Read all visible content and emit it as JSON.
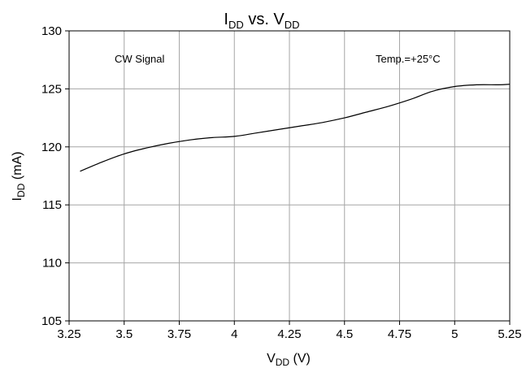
{
  "chart_data": {
    "type": "line",
    "title": {
      "main": "I",
      "sub": "DD",
      "mid": " vs. V",
      "sub2": "DD"
    },
    "xlabel": {
      "main": "V",
      "sub": "DD",
      "rest": " (V)"
    },
    "ylabel": {
      "main": "I",
      "sub": "DD",
      "rest": " (mA)"
    },
    "xlim": [
      3.25,
      5.25
    ],
    "ylim": [
      105,
      130
    ],
    "x_ticks": [
      "3.25",
      "3.5",
      "3.75",
      "4",
      "4.25",
      "4.5",
      "4.75",
      "5",
      "5.25"
    ],
    "y_ticks": [
      "130",
      "125",
      "120",
      "115",
      "110",
      "105"
    ],
    "grid": true,
    "annotations": [
      "CW Signal",
      "Temp.=+25°C"
    ],
    "series": [
      {
        "x": [
          3.3,
          3.4,
          3.5,
          3.6,
          3.7,
          3.8,
          3.9,
          4.0,
          4.1,
          4.2,
          4.3,
          4.4,
          4.5,
          4.6,
          4.7,
          4.8,
          4.9,
          5.0,
          5.1,
          5.2,
          5.25
        ],
        "y": [
          117.9,
          118.7,
          119.4,
          119.9,
          120.3,
          120.6,
          120.8,
          120.9,
          121.2,
          121.5,
          121.8,
          122.1,
          122.5,
          123.0,
          123.5,
          124.1,
          124.8,
          125.2,
          125.35,
          125.35,
          125.4
        ],
        "color": "#000000"
      }
    ]
  }
}
